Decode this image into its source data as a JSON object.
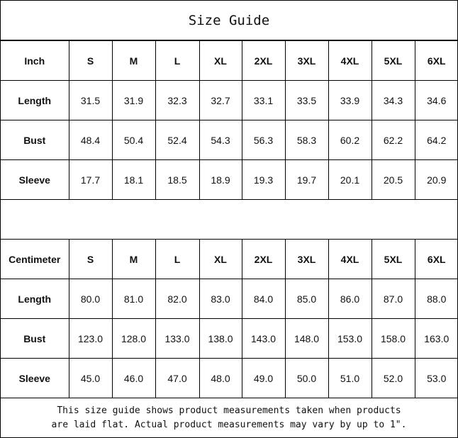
{
  "title": "Size Guide",
  "sizes": [
    "S",
    "M",
    "L",
    "XL",
    "2XL",
    "3XL",
    "4XL",
    "5XL",
    "6XL"
  ],
  "tables": [
    {
      "unit": "Inch",
      "rows": [
        {
          "label": "Length",
          "values": [
            "31.5",
            "31.9",
            "32.3",
            "32.7",
            "33.1",
            "33.5",
            "33.9",
            "34.3",
            "34.6"
          ]
        },
        {
          "label": "Bust",
          "values": [
            "48.4",
            "50.4",
            "52.4",
            "54.3",
            "56.3",
            "58.3",
            "60.2",
            "62.2",
            "64.2"
          ]
        },
        {
          "label": "Sleeve",
          "values": [
            "17.7",
            "18.1",
            "18.5",
            "18.9",
            "19.3",
            "19.7",
            "20.1",
            "20.5",
            "20.9"
          ]
        }
      ]
    },
    {
      "unit": "Centimeter",
      "rows": [
        {
          "label": "Length",
          "values": [
            "80.0",
            "81.0",
            "82.0",
            "83.0",
            "84.0",
            "85.0",
            "86.0",
            "87.0",
            "88.0"
          ]
        },
        {
          "label": "Bust",
          "values": [
            "123.0",
            "128.0",
            "133.0",
            "138.0",
            "143.0",
            "148.0",
            "153.0",
            "158.0",
            "163.0"
          ]
        },
        {
          "label": "Sleeve",
          "values": [
            "45.0",
            "46.0",
            "47.0",
            "48.0",
            "49.0",
            "50.0",
            "51.0",
            "52.0",
            "53.0"
          ]
        }
      ]
    }
  ],
  "footer": {
    "line1": "This size guide shows product measurements taken when products",
    "line2": "are laid flat. Actual product measurements may vary by up to 1\"."
  }
}
